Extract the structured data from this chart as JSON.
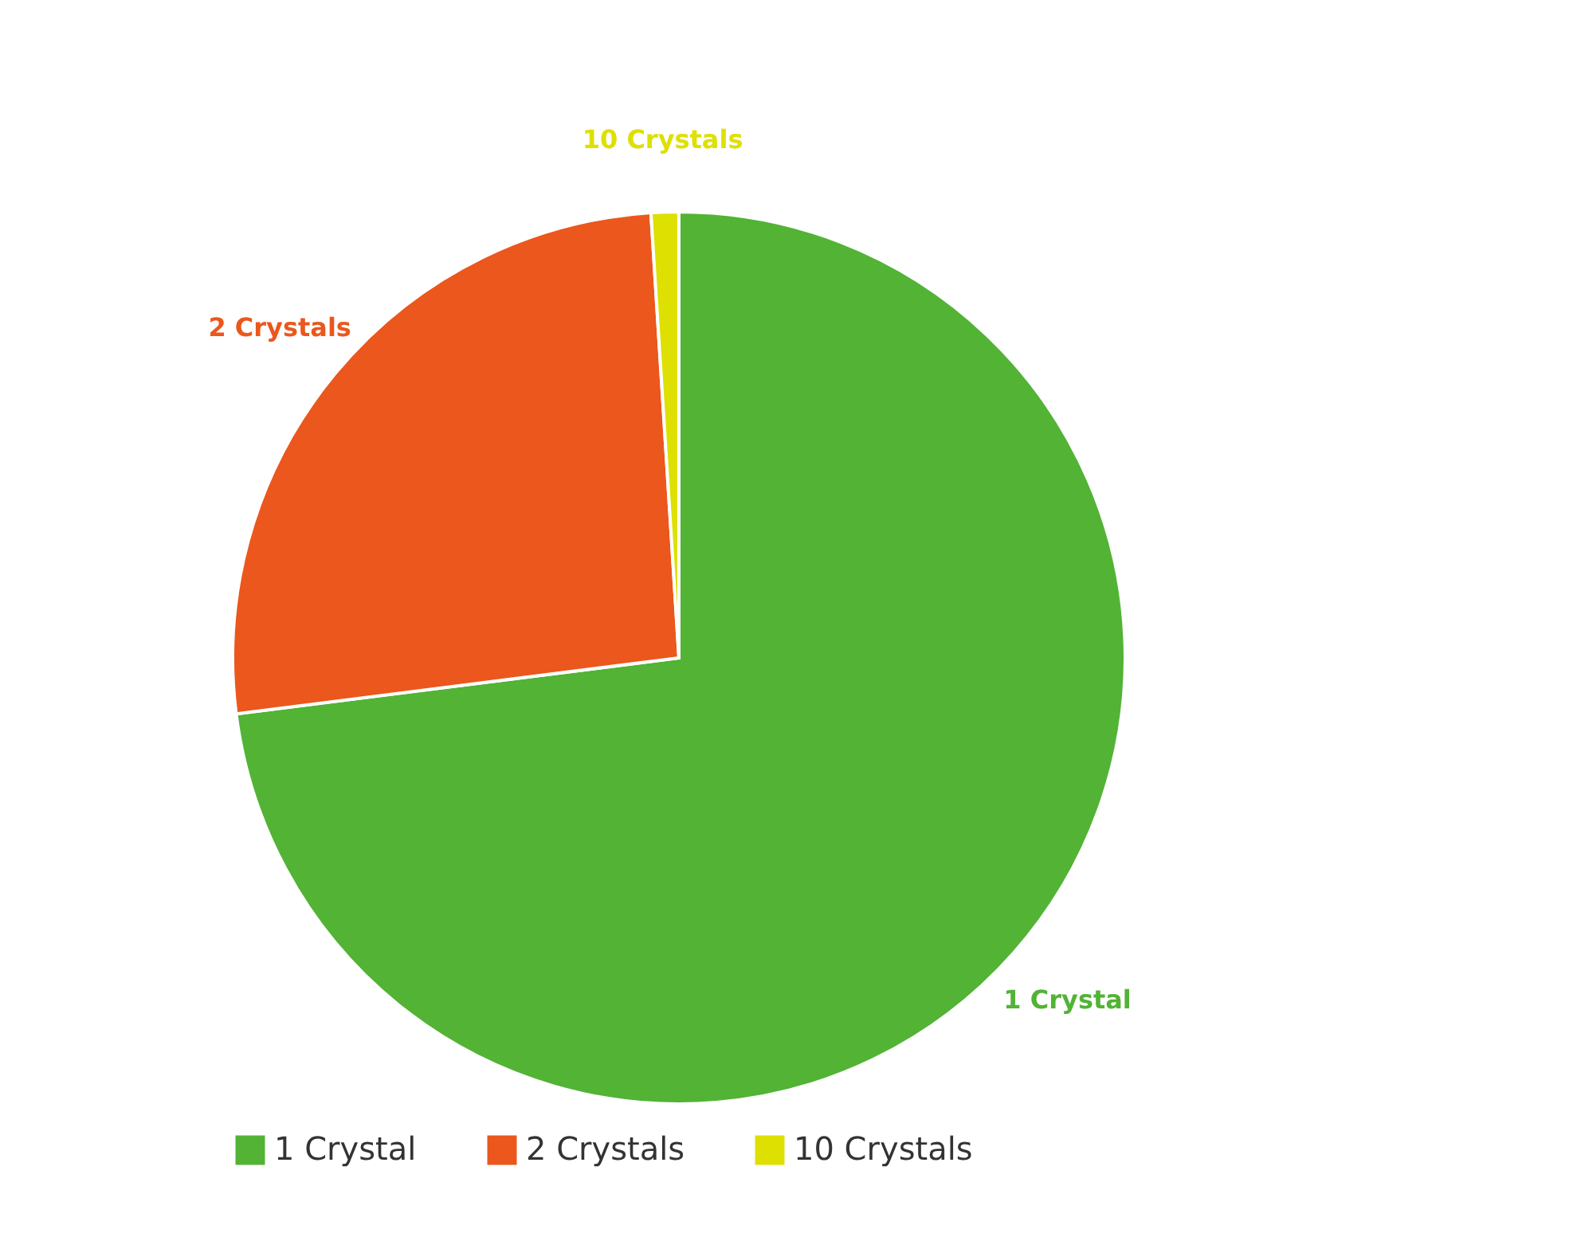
{
  "chart_data": {
    "type": "pie",
    "categories": [
      "1 Crystal",
      "2 Crystals",
      "10 Crystals"
    ],
    "values": [
      73,
      26,
      1
    ],
    "colors": [
      "#52b335",
      "#eb571c",
      "#dde000"
    ],
    "legend": "bottom"
  }
}
